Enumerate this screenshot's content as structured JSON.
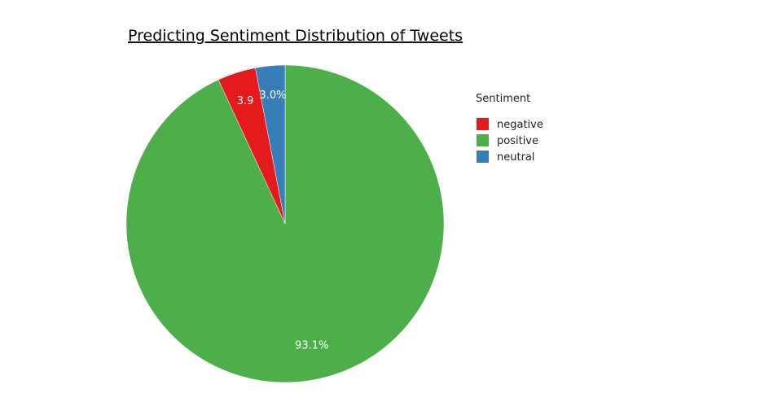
{
  "chart_data": {
    "type": "pie",
    "title": "Predicting Sentiment Distribution of Tweets",
    "legend_title": "Sentiment",
    "legend_position": "right",
    "slices": [
      {
        "name": "positive",
        "value": 93.1,
        "label": "93.1%",
        "color": "#4daf4a"
      },
      {
        "name": "negative",
        "value": 3.9,
        "label": "3.9",
        "color": "#e41a1c"
      },
      {
        "name": "neutral",
        "value": 3.0,
        "label": "3.0%",
        "color": "#377eb8"
      }
    ],
    "legend_order": [
      "negative",
      "positive",
      "neutral"
    ]
  }
}
